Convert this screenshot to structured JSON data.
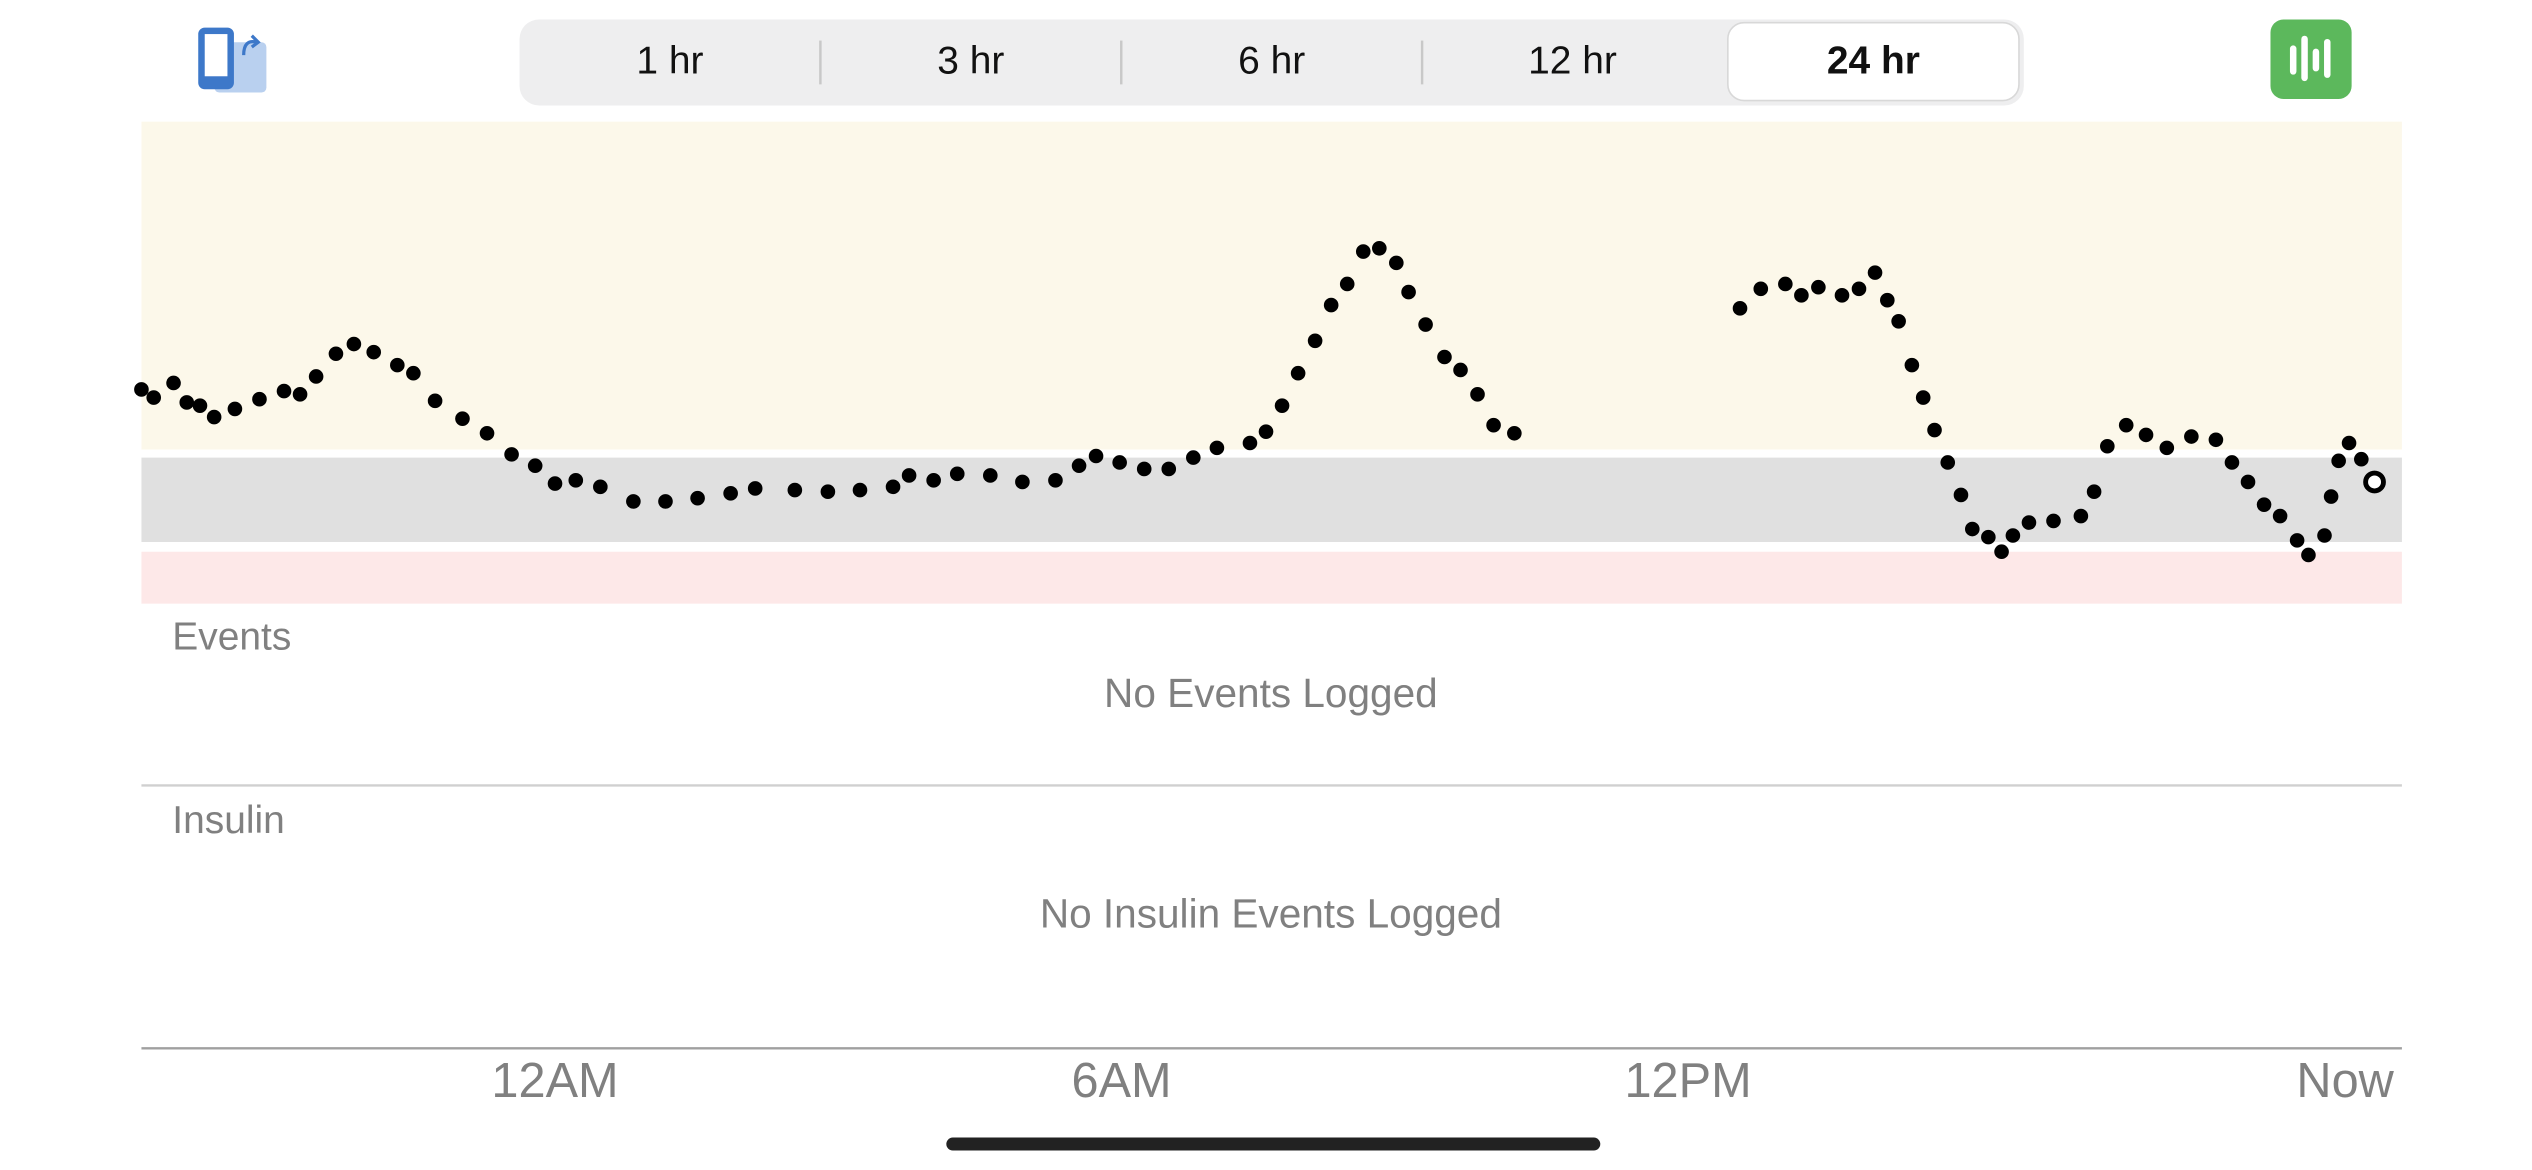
{
  "tabs": [
    "1 hr",
    "3 hr",
    "6 hr",
    "12 hr",
    "24 hr"
  ],
  "selected_tab": 4,
  "chart_data": {
    "type": "scatter",
    "x": [
      -4.38,
      -4.25,
      -4.04,
      -3.9,
      -3.76,
      -3.61,
      -3.39,
      -3.13,
      -2.87,
      -2.7,
      -2.53,
      -2.32,
      -2.13,
      -1.92,
      -1.67,
      -1.5,
      -1.27,
      -0.98,
      -0.72,
      -0.46,
      -0.21,
      0,
      0.22,
      0.48,
      0.83,
      1.17,
      1.51,
      1.86,
      2.12,
      2.54,
      2.89,
      3.23,
      3.58,
      3.75,
      4.01,
      4.26,
      4.61,
      4.95,
      5.3,
      5.55,
      5.73,
      5.98,
      6.24,
      6.5,
      6.76,
      7.01,
      7.36,
      7.53,
      7.7,
      7.87,
      8.05,
      8.22,
      8.39,
      8.56,
      8.73,
      8.91,
      9.04,
      9.22,
      9.42,
      9.59,
      9.77,
      9.94,
      10.16,
      12.55,
      12.77,
      13.03,
      13.2,
      13.38,
      13.63,
      13.81,
      13.98,
      14.11,
      14.23,
      14.37,
      14.49,
      14.61,
      14.75,
      14.89,
      15.01,
      15.18,
      15.32,
      15.44,
      15.61,
      15.87,
      16.16,
      16.3,
      16.44,
      16.64,
      16.85,
      17.07,
      17.33,
      17.59,
      17.76,
      17.93,
      18.1,
      18.27,
      18.45,
      18.57,
      18.74,
      18.81,
      18.89,
      19,
      19.13,
      19.27
    ],
    "values": [
      132,
      127,
      136,
      124,
      122,
      115,
      120,
      126,
      131,
      129,
      140,
      154,
      160,
      155,
      147,
      142,
      125,
      114,
      105,
      92,
      85,
      74,
      76,
      72,
      63,
      63,
      65,
      68,
      71,
      70,
      69,
      70,
      72,
      79,
      76,
      80,
      79,
      75,
      76,
      85,
      91,
      87,
      83,
      83,
      90,
      96,
      99,
      106,
      122,
      142,
      162,
      184,
      197,
      217,
      219,
      210,
      192,
      172,
      152,
      144,
      129,
      110,
      105,
      182,
      194,
      197,
      190,
      195,
      190,
      194,
      204,
      187,
      174,
      147,
      127,
      107,
      87,
      67,
      46,
      41,
      32,
      42,
      50,
      51,
      54,
      69,
      97,
      110,
      104,
      96,
      103,
      101,
      87,
      75,
      61,
      54,
      39,
      30,
      42,
      66,
      88,
      99,
      89,
      75
    ],
    "color": "#000000",
    "xlim": [
      -4.38,
      19.56
    ],
    "ylim": [
      0,
      297
    ],
    "xticks": [
      {
        "value": 0,
        "label": "12AM"
      },
      {
        "value": 6,
        "label": "6AM"
      },
      {
        "value": 12,
        "label": "12PM"
      },
      {
        "value": 19.56,
        "label": "Now"
      }
    ],
    "bands": [
      {
        "from": 95,
        "to": 297,
        "color": "#fcf8ea"
      },
      {
        "from": 38,
        "to": 90,
        "color": "#e0e0e0"
      },
      {
        "from": 0,
        "to": 32,
        "color": "#fde8e8"
      }
    ]
  },
  "events": {
    "title": "Events",
    "empty": "No Events Logged"
  },
  "insulin": {
    "title": "Insulin",
    "empty": "No Insulin Events Logged"
  }
}
